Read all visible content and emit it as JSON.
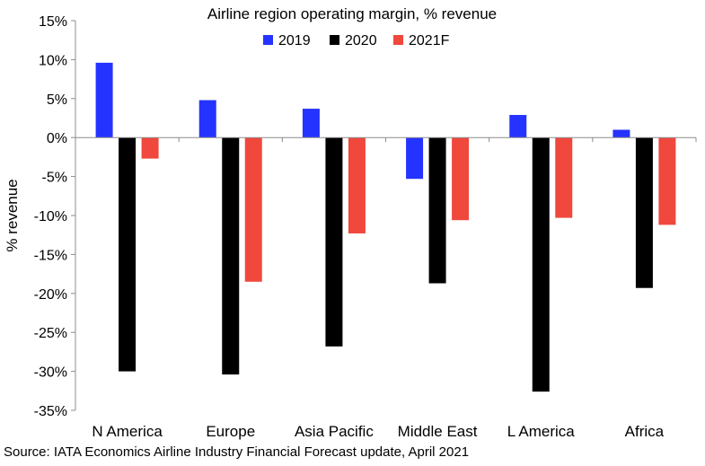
{
  "chart_data": {
    "type": "bar",
    "title": "Airline region operating margin, % revenue",
    "xlabel": "",
    "ylabel": "% revenue",
    "categories": [
      "N America",
      "Europe",
      "Asia Pacific",
      "Middle East",
      "L America",
      "Africa"
    ],
    "series": [
      {
        "name": "2019",
        "color": "#2433ff",
        "values": [
          9.6,
          4.8,
          3.7,
          -5.3,
          2.9,
          1.0
        ]
      },
      {
        "name": "2020",
        "color": "#000000",
        "values": [
          -30.0,
          -30.4,
          -26.8,
          -18.7,
          -32.6,
          -19.3
        ]
      },
      {
        "name": "2021F",
        "color": "#f0483c",
        "values": [
          -2.7,
          -18.5,
          -12.3,
          -10.6,
          -10.3,
          -11.2
        ]
      }
    ],
    "ylim": [
      -35,
      15
    ],
    "yticks": [
      15,
      10,
      5,
      0,
      -5,
      -10,
      -15,
      -20,
      -25,
      -30,
      -35
    ],
    "ytick_labels": [
      "15%",
      "10%",
      "5%",
      "0%",
      "-5%",
      "-10%",
      "-15%",
      "-20%",
      "-25%",
      "-30%",
      "-35%"
    ],
    "grid": false,
    "legend_position": "top-center"
  },
  "source": "Source: IATA Economics Airline Industry Financial Forecast update, April 2021"
}
